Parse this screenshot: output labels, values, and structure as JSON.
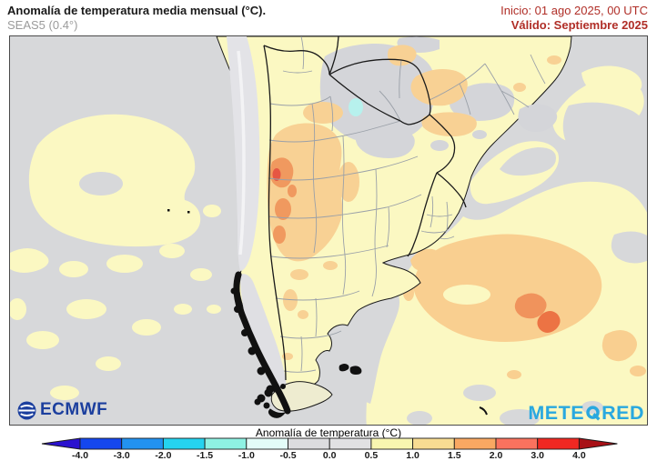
{
  "header": {
    "title": "Anomalía de temperatura media mensual (°C).",
    "subtitle": "SEAS5 (0.4°)",
    "init": "Inicio: 01 ago 2025, 00 UTC",
    "valid": "Válido: Septiembre 2025",
    "accent_red": "#b02e27",
    "subtitle_gray": "#9b9b9b"
  },
  "logos": {
    "ecmwf": "ECMWF",
    "ecmwf_blue": "#1c3f9e",
    "meteored_prefix": "METE",
    "meteored_suffix": "RED",
    "meteored_cyan": "#29a8df"
  },
  "colorbar": {
    "title": "Anomalía de temperatura (°C)",
    "ticks": [
      "-4.0",
      "-3.0",
      "-2.0",
      "-1.5",
      "-1.0",
      "-0.5",
      "0.0",
      "0.5",
      "1.0",
      "1.5",
      "2.0",
      "3.0",
      "4.0"
    ],
    "segment_colors": [
      "#1547ee",
      "#2292f0",
      "#25d3ef",
      "#8ef2e3",
      "#e3fcf8",
      "#dcdcdf",
      "#e1e1e3",
      "#f8f6b0",
      "#f8dc92",
      "#f9a862",
      "#fa725e",
      "#f02822"
    ],
    "left_arrow_color": "#2b12cf",
    "right_arrow_color": "#a81016",
    "outline_color": "#1a1a1a"
  },
  "map_palette": {
    "ocean_neutral_gray": "#d7d8da",
    "anomaly_0_5_to_1": "#fbf8c2",
    "anomaly_1_to_1_5": "#f8d194",
    "anomaly_1_5_to_2": "#f0995f",
    "anomaly_2_to_3": "#e65643",
    "anomaly_cool_spot": "#b7f1ed",
    "andes_terrain_gray": "#e3e3e7",
    "coastline_black": "#1a1a1a",
    "province_border_gray": "#9aa0a8"
  }
}
